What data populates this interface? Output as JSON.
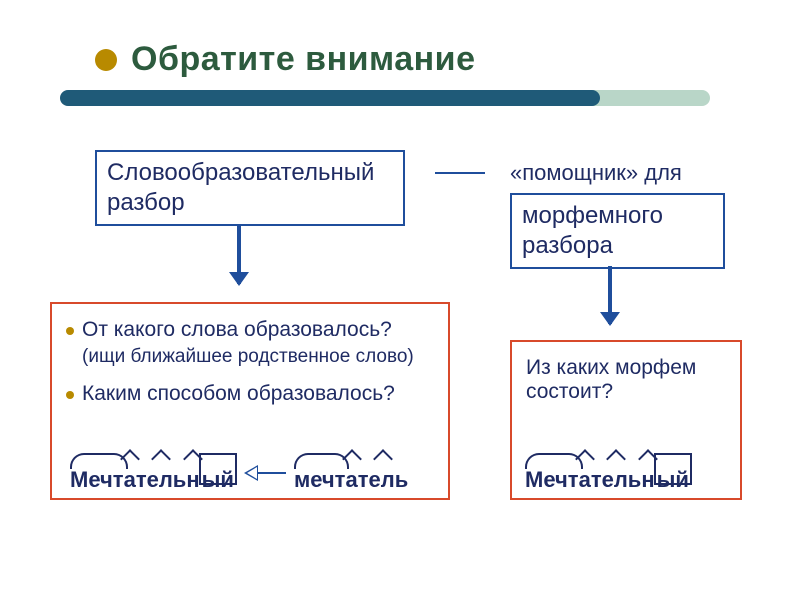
{
  "colors": {
    "title_text": "#2d5b3e",
    "title_dot": "#b88a00",
    "title_bar_main": "#1f5a78",
    "title_bar_cap": "#b9d6c8",
    "box_border": "#1f4e9c",
    "box_text": "#1f2b63",
    "helper_text": "#1f2b63",
    "dash": "#1f4e9c",
    "arrow": "#1f4e9c",
    "qbox_border": "#d84a2b",
    "bullet": "#b88a00",
    "q_text": "#1f2b63",
    "morph_mark": "#d84a2b",
    "morph_text": "#1f2b63",
    "backarrow": "#1f4e9c"
  },
  "title": "Обратите внимание",
  "box_wordform_l1": "Словообразовательный",
  "box_wordform_l2": "разбор",
  "helper_label": "«помощник» для",
  "box_morpheme_l1": "морфемного",
  "box_morpheme_l2": "разбора",
  "q_left_1": "От какого слова образовалось?",
  "q_left_1_sub": "(ищи ближайшее родственное слово)",
  "q_left_2": "Каким способом образовалось?",
  "q_right_1a": "Из каких морфем",
  "q_right_1b": "состоит?",
  "word_left_root": "Мечт",
  "word_left_suf1": "а",
  "word_left_suf2": "тель",
  "word_left_suf3": "н",
  "word_left_end": "ый",
  "word_left_src_root": "мечт",
  "word_left_src_suf1": "а",
  "word_left_src_suf2": "тель",
  "word_right_root": "Мечт",
  "word_right_suf1": "а",
  "word_right_suf2": "тель",
  "word_right_suf3": "н",
  "word_right_end": "ый"
}
